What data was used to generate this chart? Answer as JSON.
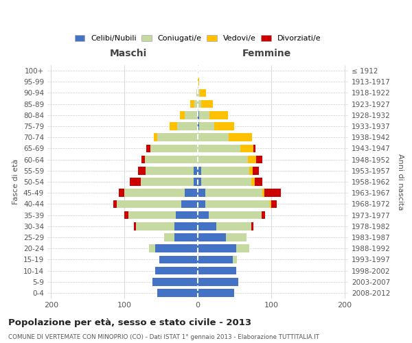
{
  "age_groups": [
    "0-4",
    "5-9",
    "10-14",
    "15-19",
    "20-24",
    "25-29",
    "30-34",
    "35-39",
    "40-44",
    "45-49",
    "50-54",
    "55-59",
    "60-64",
    "65-69",
    "70-74",
    "75-79",
    "80-84",
    "85-89",
    "90-94",
    "95-99",
    "100+"
  ],
  "birth_years": [
    "2008-2012",
    "2003-2007",
    "1998-2002",
    "1993-1997",
    "1988-1992",
    "1983-1987",
    "1978-1982",
    "1973-1977",
    "1968-1972",
    "1963-1967",
    "1958-1962",
    "1953-1957",
    "1948-1952",
    "1943-1947",
    "1938-1942",
    "1933-1937",
    "1928-1932",
    "1923-1927",
    "1918-1922",
    "1913-1917",
    "≤ 1912"
  ],
  "males": {
    "celibe": [
      55,
      62,
      58,
      52,
      58,
      32,
      32,
      30,
      22,
      18,
      6,
      6,
      0,
      0,
      0,
      0,
      0,
      0,
      0,
      0,
      0
    ],
    "coniugato": [
      0,
      0,
      0,
      0,
      8,
      14,
      52,
      65,
      88,
      82,
      72,
      65,
      72,
      65,
      55,
      28,
      18,
      5,
      2,
      0,
      0
    ],
    "vedovo": [
      0,
      0,
      0,
      0,
      0,
      0,
      0,
      0,
      0,
      0,
      0,
      0,
      0,
      0,
      5,
      10,
      6,
      5,
      0,
      0,
      0
    ],
    "divorziato": [
      0,
      0,
      0,
      0,
      0,
      0,
      3,
      5,
      5,
      8,
      15,
      10,
      5,
      5,
      0,
      0,
      0,
      0,
      0,
      0,
      0
    ]
  },
  "females": {
    "nubile": [
      50,
      55,
      52,
      48,
      52,
      38,
      25,
      15,
      10,
      10,
      5,
      5,
      0,
      0,
      0,
      2,
      2,
      0,
      0,
      0,
      0
    ],
    "coniugata": [
      0,
      0,
      0,
      5,
      18,
      28,
      48,
      72,
      88,
      78,
      68,
      65,
      68,
      58,
      42,
      20,
      14,
      5,
      3,
      0,
      0
    ],
    "vedova": [
      0,
      0,
      0,
      0,
      0,
      0,
      0,
      0,
      2,
      3,
      5,
      5,
      12,
      18,
      32,
      28,
      25,
      16,
      8,
      2,
      0
    ],
    "divorziata": [
      0,
      0,
      0,
      0,
      0,
      0,
      3,
      5,
      8,
      22,
      10,
      8,
      8,
      3,
      0,
      0,
      0,
      0,
      0,
      0,
      0
    ]
  },
  "colors": {
    "celibe": "#4472c4",
    "coniugato": "#c5d9a0",
    "vedovo": "#ffc000",
    "divorziato": "#cc0000"
  },
  "title": "Popolazione per età, sesso e stato civile - 2013",
  "subtitle": "COMUNE DI VERTEMATE CON MINOPRIO (CO) - Dati ISTAT 1° gennaio 2013 - Elaborazione TUTTITALIA.IT",
  "xlabel_left": "Maschi",
  "xlabel_right": "Femmine",
  "ylabel_left": "Fasce di età",
  "ylabel_right": "Anni di nascita",
  "xlim": 205,
  "xticks": [
    -200,
    -100,
    0,
    100,
    200
  ],
  "xticklabels": [
    "200",
    "100",
    "0",
    "100",
    "200"
  ],
  "legend_labels": [
    "Celibi/Nubili",
    "Coniugati/e",
    "Vedovi/e",
    "Divorziati/e"
  ],
  "bg_color": "#ffffff",
  "grid_color": "#cccccc"
}
